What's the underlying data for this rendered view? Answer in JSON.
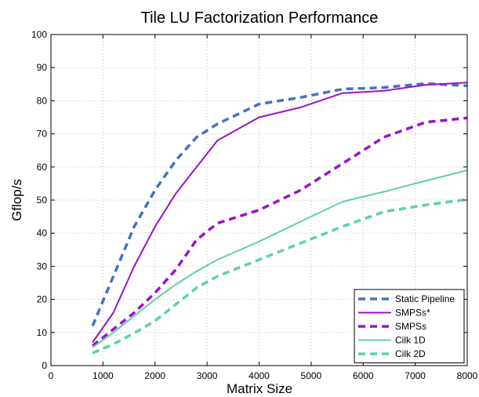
{
  "chart_data": {
    "type": "line",
    "title": "Tile LU Factorization Performance",
    "xlabel": "Matrix Size",
    "ylabel": "Gflop/s",
    "xlim": [
      0,
      8000
    ],
    "ylim": [
      0,
      100
    ],
    "xticks": [
      0,
      1000,
      2000,
      3000,
      4000,
      5000,
      6000,
      7000,
      8000
    ],
    "yticks": [
      0,
      10,
      20,
      30,
      40,
      50,
      60,
      70,
      80,
      90,
      100
    ],
    "grid": true,
    "legend_position": "bottom-right",
    "series": [
      {
        "name": "Static Pipeline",
        "color": "#4472c4",
        "dashed": true,
        "x": [
          800,
          1200,
          1600,
          2000,
          2400,
          2800,
          3200,
          3600,
          4000,
          4800,
          5600,
          6400,
          7200,
          8000
        ],
        "y": [
          12,
          27,
          42,
          53,
          62,
          69,
          73,
          76,
          79,
          81,
          83.5,
          84,
          85.2,
          84.5
        ]
      },
      {
        "name": "SMPSs*",
        "color": "#9b12c8",
        "dashed": false,
        "x": [
          800,
          1200,
          1600,
          2000,
          2400,
          2800,
          3200,
          3600,
          4000,
          4800,
          5600,
          6400,
          7200,
          8000
        ],
        "y": [
          7,
          16,
          30,
          42,
          52,
          60,
          68,
          71.5,
          75,
          78,
          82.3,
          83,
          84.8,
          85.5
        ]
      },
      {
        "name": "SMPSs",
        "color": "#9b12c8",
        "dashed": true,
        "x": [
          800,
          1200,
          1600,
          2000,
          2400,
          2800,
          3200,
          4000,
          4800,
          5600,
          6400,
          7200,
          8000
        ],
        "y": [
          6,
          11,
          16,
          22,
          29,
          38,
          43,
          47,
          53,
          61,
          69,
          73.5,
          74.8
        ]
      },
      {
        "name": "Cilk 1D",
        "color": "#5fd39b",
        "dashed": false,
        "x": [
          800,
          1200,
          1600,
          2000,
          2400,
          2800,
          3200,
          4000,
          4800,
          5600,
          6400,
          7200,
          8000
        ],
        "y": [
          5.5,
          10,
          15,
          20,
          24.5,
          28.5,
          32,
          37.5,
          43.5,
          49.5,
          52.5,
          55.8,
          59
        ]
      },
      {
        "name": "Cilk 2D",
        "color": "#5fd39b",
        "dashed": true,
        "x": [
          800,
          1200,
          1600,
          2000,
          2400,
          2800,
          3200,
          4000,
          4800,
          5600,
          6400,
          7200,
          8000
        ],
        "y": [
          3.8,
          6.5,
          9.8,
          13.5,
          18.5,
          23.5,
          27,
          32,
          37,
          42,
          46.5,
          48.5,
          50.2
        ]
      }
    ]
  }
}
